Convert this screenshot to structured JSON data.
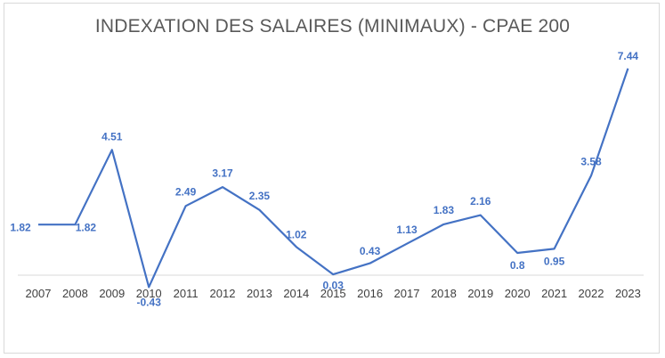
{
  "chart_data": {
    "type": "line",
    "title": "INDEXATION DES SALAIRES (MINIMAUX) - CPAE 200",
    "x": [
      "2007",
      "2008",
      "2009",
      "2010",
      "2011",
      "2012",
      "2013",
      "2014",
      "2015",
      "2016",
      "2017",
      "2018",
      "2019",
      "2020",
      "2021",
      "2022",
      "2023"
    ],
    "series": [
      {
        "values": [
          1.82,
          1.82,
          4.51,
          -0.43,
          2.49,
          3.17,
          2.35,
          1.02,
          0.03,
          0.43,
          1.13,
          1.83,
          2.16,
          0.8,
          0.95,
          3.58,
          7.44
        ]
      }
    ],
    "data_labels": [
      "1.82",
      "1.82",
      "4.51",
      "-0.43",
      "2.49",
      "3.17",
      "2.35",
      "1.02",
      "0.03",
      "0.43",
      "1.13",
      "1.83",
      "2.16",
      "0.8",
      "0.95",
      "3.58",
      "7.44"
    ],
    "ylim": [
      0,
      8
    ],
    "grid": false,
    "colors": {
      "line": "#4472c4",
      "axis": "#d9d9d9",
      "text": "#404040",
      "title": "#595959"
    }
  }
}
